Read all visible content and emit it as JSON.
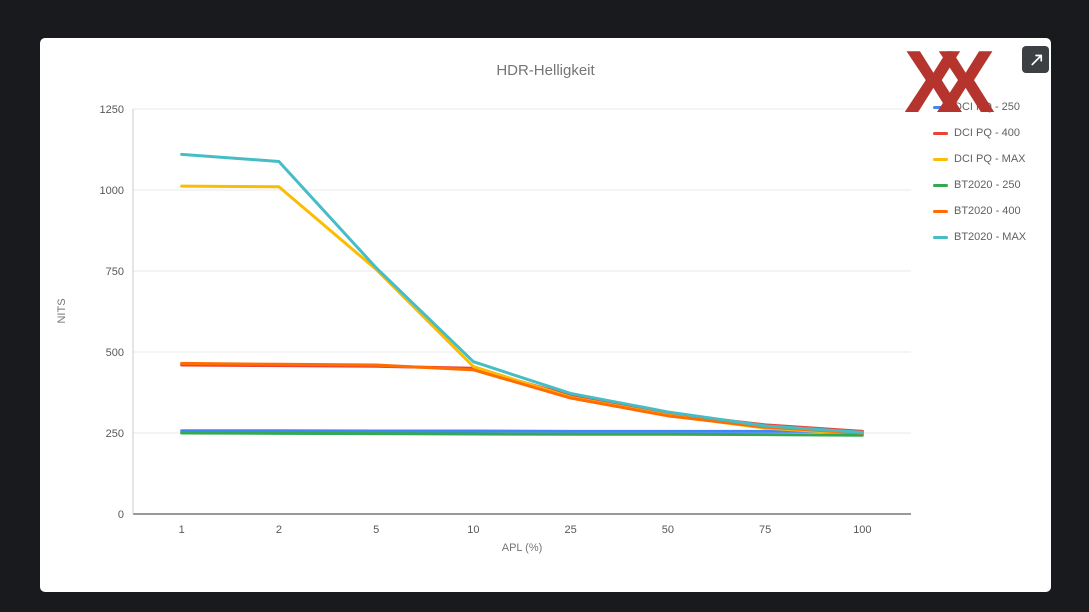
{
  "page": {
    "background": "#181a1d"
  },
  "card": {
    "background": "#ffffff"
  },
  "watermark": {
    "text": "XX",
    "color": "#b5342e"
  },
  "controls": {
    "expand_button": "open-in-full"
  },
  "chart_data": {
    "type": "line",
    "title": "HDR-Helligkeit",
    "xlabel": "APL (%)",
    "ylabel": "NITS",
    "x_type": "category",
    "categories": [
      "1",
      "2",
      "5",
      "10",
      "25",
      "50",
      "75",
      "100"
    ],
    "y_ticks": [
      0,
      250,
      500,
      750,
      1000,
      1250
    ],
    "ylim": [
      0,
      1250
    ],
    "grid": "horizontal",
    "legend_position": "right",
    "series": [
      {
        "name": "DCI PQ - 250",
        "color": "#4285F4",
        "values": [
          257,
          257,
          256,
          256,
          255,
          255,
          255,
          255
        ]
      },
      {
        "name": "DCI PQ - 400",
        "color": "#EA4335",
        "values": [
          460,
          458,
          456,
          450,
          365,
          310,
          275,
          255
        ]
      },
      {
        "name": "DCI PQ - MAX",
        "color": "#FBBC04",
        "values": [
          1012,
          1010,
          755,
          455,
          360,
          305,
          265,
          247
        ]
      },
      {
        "name": "BT2020 - 250",
        "color": "#34A853",
        "values": [
          250,
          249,
          248,
          247,
          246,
          246,
          245,
          243
        ]
      },
      {
        "name": "BT2020 - 400",
        "color": "#FF6D01",
        "values": [
          465,
          462,
          460,
          445,
          358,
          303,
          268,
          250
        ]
      },
      {
        "name": "BT2020 - MAX",
        "color": "#46BDC6",
        "values": [
          1110,
          1088,
          760,
          470,
          372,
          315,
          272,
          252
        ]
      }
    ]
  }
}
